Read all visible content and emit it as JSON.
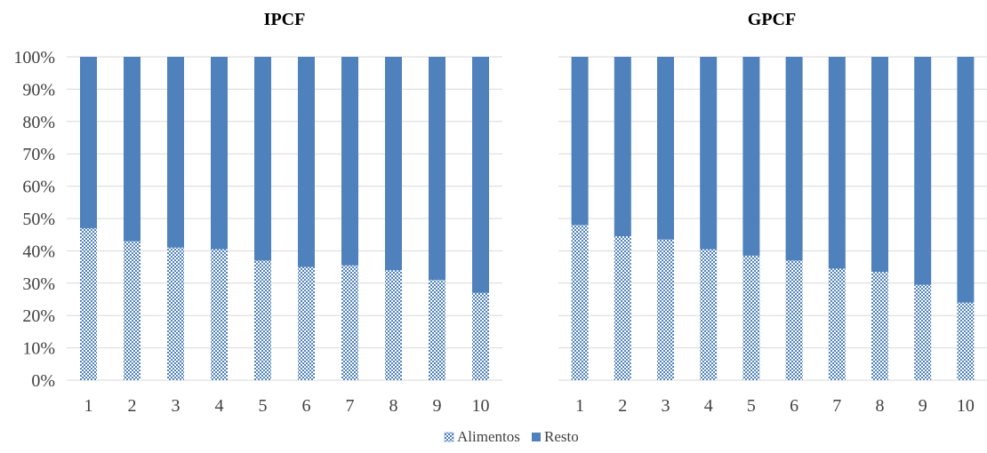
{
  "chart_data": [
    {
      "type": "bar",
      "stacked": true,
      "normalized": true,
      "title": "IPCF",
      "categories": [
        "1",
        "2",
        "3",
        "4",
        "5",
        "6",
        "7",
        "8",
        "9",
        "10"
      ],
      "series": [
        {
          "name": "Alimentos",
          "values": [
            47,
            43,
            41,
            40.5,
            37,
            35,
            35.5,
            34,
            31,
            27
          ],
          "color": "#4f81bd",
          "pattern": "checker"
        },
        {
          "name": "Resto",
          "values": [
            53,
            57,
            59,
            59.5,
            63,
            65,
            64.5,
            66,
            69,
            73
          ],
          "color": "#4f81bd"
        }
      ],
      "yticks": [
        "0%",
        "10%",
        "20%",
        "30%",
        "40%",
        "50%",
        "60%",
        "70%",
        "80%",
        "90%",
        "100%"
      ],
      "ylim": [
        0,
        100
      ],
      "grid": true
    },
    {
      "type": "bar",
      "stacked": true,
      "normalized": true,
      "title": "GPCF",
      "categories": [
        "1",
        "2",
        "3",
        "4",
        "5",
        "6",
        "7",
        "8",
        "9",
        "10"
      ],
      "series": [
        {
          "name": "Alimentos",
          "values": [
            48,
            44.5,
            43.5,
            40.5,
            38.5,
            37,
            34.5,
            33.5,
            29.5,
            24
          ],
          "color": "#4f81bd",
          "pattern": "checker"
        },
        {
          "name": "Resto",
          "values": [
            52,
            55.5,
            56.5,
            59.5,
            61.5,
            63,
            65.5,
            66.5,
            70.5,
            76
          ],
          "color": "#4f81bd"
        }
      ],
      "ylim": [
        0,
        100
      ],
      "grid": true
    }
  ],
  "legend": {
    "position": "bottom",
    "items": [
      {
        "label": "Alimentos",
        "color": "#4f81bd",
        "pattern": "checker"
      },
      {
        "label": "Resto",
        "color": "#4f81bd"
      }
    ]
  }
}
